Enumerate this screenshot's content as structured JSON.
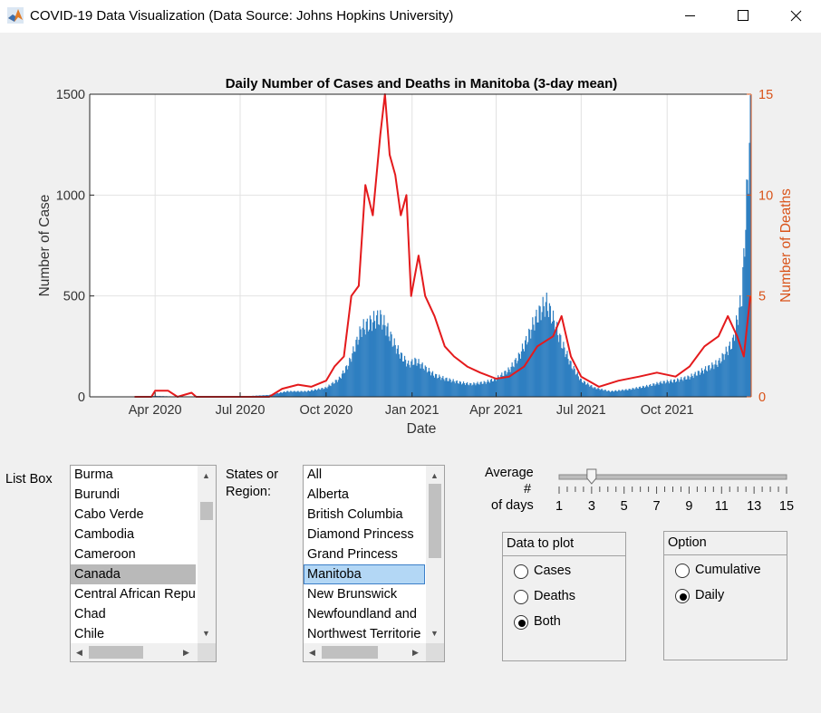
{
  "window": {
    "title": "COVID-19 Data Visualization (Data Source: Johns Hopkins University)",
    "icon": "matlab-icon",
    "controls": [
      "minimize-icon",
      "maximize-icon",
      "close-icon"
    ]
  },
  "chart_data": {
    "type": "bar+line",
    "title": "Daily Number of Cases and Deaths in Manitoba (3-day mean)",
    "xlabel": "Date",
    "ylabel_left": "Number of Case",
    "ylabel_right": "Number of Deaths",
    "x_ticks": [
      "Apr 2020",
      "Jul 2020",
      "Oct 2020",
      "Jan 2021",
      "Apr 2021",
      "Jul 2021",
      "Oct 2021"
    ],
    "y_left_ticks": [
      "0",
      "500",
      "1000",
      "1500"
    ],
    "y_right_ticks": [
      "0",
      "5",
      "10",
      "15"
    ],
    "ylim_left": [
      0,
      1500
    ],
    "ylim_right": [
      0,
      15
    ],
    "grid": true,
    "colors": {
      "cases": "#2f7fc1",
      "deaths": "#e41a1c",
      "right_axis": "#d95319"
    },
    "series": [
      {
        "type": "bar",
        "axis": "left",
        "points": [
          [
            "2020-03-15",
            2
          ],
          [
            "2020-04-01",
            5
          ],
          [
            "2020-04-15",
            3
          ],
          [
            "2020-05-01",
            1
          ],
          [
            "2020-06-01",
            1
          ],
          [
            "2020-07-01",
            2
          ],
          [
            "2020-08-01",
            10
          ],
          [
            "2020-08-20",
            30
          ],
          [
            "2020-09-10",
            30
          ],
          [
            "2020-10-01",
            50
          ],
          [
            "2020-10-15",
            100
          ],
          [
            "2020-10-25",
            180
          ],
          [
            "2020-11-01",
            280
          ],
          [
            "2020-11-08",
            380
          ],
          [
            "2020-11-15",
            400
          ],
          [
            "2020-11-22",
            430
          ],
          [
            "2020-11-28",
            440
          ],
          [
            "2020-12-05",
            380
          ],
          [
            "2020-12-12",
            300
          ],
          [
            "2020-12-20",
            230
          ],
          [
            "2020-12-28",
            180
          ],
          [
            "2021-01-05",
            200
          ],
          [
            "2021-01-15",
            160
          ],
          [
            "2021-01-25",
            120
          ],
          [
            "2021-02-05",
            100
          ],
          [
            "2021-02-20",
            80
          ],
          [
            "2021-03-05",
            70
          ],
          [
            "2021-03-20",
            80
          ],
          [
            "2021-04-01",
            100
          ],
          [
            "2021-04-15",
            150
          ],
          [
            "2021-04-25",
            220
          ],
          [
            "2021-05-05",
            330
          ],
          [
            "2021-05-12",
            420
          ],
          [
            "2021-05-20",
            490
          ],
          [
            "2021-05-25",
            520
          ],
          [
            "2021-06-01",
            430
          ],
          [
            "2021-06-10",
            300
          ],
          [
            "2021-06-20",
            180
          ],
          [
            "2021-07-01",
            90
          ],
          [
            "2021-07-15",
            50
          ],
          [
            "2021-08-01",
            30
          ],
          [
            "2021-08-20",
            40
          ],
          [
            "2021-09-10",
            60
          ],
          [
            "2021-09-25",
            80
          ],
          [
            "2021-10-10",
            90
          ],
          [
            "2021-10-25",
            110
          ],
          [
            "2021-11-10",
            150
          ],
          [
            "2021-11-25",
            190
          ],
          [
            "2021-12-10",
            300
          ],
          [
            "2021-12-20",
            560
          ],
          [
            "2021-12-29",
            1500
          ]
        ]
      },
      {
        "type": "line",
        "axis": "right",
        "points": [
          [
            "2020-03-10",
            0
          ],
          [
            "2020-03-28",
            0
          ],
          [
            "2020-04-01",
            0.3
          ],
          [
            "2020-04-15",
            0.3
          ],
          [
            "2020-04-25",
            0
          ],
          [
            "2020-05-10",
            0.2
          ],
          [
            "2020-05-15",
            0
          ],
          [
            "2020-08-01",
            0
          ],
          [
            "2020-08-15",
            0.4
          ],
          [
            "2020-09-01",
            0.6
          ],
          [
            "2020-09-15",
            0.5
          ],
          [
            "2020-10-01",
            0.8
          ],
          [
            "2020-10-10",
            1.5
          ],
          [
            "2020-10-20",
            2.0
          ],
          [
            "2020-10-28",
            5.0
          ],
          [
            "2020-11-05",
            5.5
          ],
          [
            "2020-11-12",
            10.5
          ],
          [
            "2020-11-20",
            9.0
          ],
          [
            "2020-11-28",
            13.0
          ],
          [
            "2020-12-03",
            15.0
          ],
          [
            "2020-12-08",
            12.0
          ],
          [
            "2020-12-14",
            11.0
          ],
          [
            "2020-12-20",
            9.0
          ],
          [
            "2020-12-26",
            10.0
          ],
          [
            "2020-12-31",
            5.0
          ],
          [
            "2021-01-08",
            7.0
          ],
          [
            "2021-01-15",
            5.0
          ],
          [
            "2021-01-25",
            4.0
          ],
          [
            "2021-02-05",
            2.5
          ],
          [
            "2021-02-15",
            2.0
          ],
          [
            "2021-03-01",
            1.5
          ],
          [
            "2021-03-15",
            1.2
          ],
          [
            "2021-04-01",
            0.9
          ],
          [
            "2021-04-15",
            1.0
          ],
          [
            "2021-05-01",
            1.5
          ],
          [
            "2021-05-15",
            2.5
          ],
          [
            "2021-06-01",
            3.0
          ],
          [
            "2021-06-10",
            4.0
          ],
          [
            "2021-06-20",
            2.0
          ],
          [
            "2021-07-01",
            1.0
          ],
          [
            "2021-07-20",
            0.5
          ],
          [
            "2021-08-10",
            0.8
          ],
          [
            "2021-09-01",
            1.0
          ],
          [
            "2021-09-20",
            1.2
          ],
          [
            "2021-10-10",
            1.0
          ],
          [
            "2021-10-25",
            1.5
          ],
          [
            "2021-11-10",
            2.5
          ],
          [
            "2021-11-25",
            3.0
          ],
          [
            "2021-12-05",
            4.0
          ],
          [
            "2021-12-15",
            3.0
          ],
          [
            "2021-12-22",
            2.0
          ],
          [
            "2021-12-29",
            5.0
          ]
        ]
      }
    ]
  },
  "controls": {
    "country_list": {
      "label": "List Box",
      "items": [
        "Burma",
        "Burundi",
        "Cabo Verde",
        "Cambodia",
        "Cameroon",
        "Canada",
        "Central African Repu",
        "Chad",
        "Chile"
      ],
      "selected": "Canada"
    },
    "state_list": {
      "label_line1": "States or",
      "label_line2": "Region:",
      "items": [
        "All",
        "Alberta",
        "British Columbia",
        "Diamond Princess",
        "Grand Princess",
        "Manitoba",
        "New Brunswick",
        "Newfoundland and",
        "Northwest Territorie"
      ],
      "selected": "Manitoba"
    },
    "average_slider": {
      "label_line1": "Average",
      "label_line2": "#",
      "label_line3": "of days",
      "ticks": [
        "1",
        "3",
        "5",
        "7",
        "9",
        "11",
        "13",
        "15"
      ],
      "value": 3,
      "min": 1,
      "max": 15
    },
    "data_to_plot": {
      "title": "Data to plot",
      "options": [
        "Cases",
        "Deaths",
        "Both"
      ],
      "selected": "Both"
    },
    "option": {
      "title": "Option",
      "options": [
        "Cumulative",
        "Daily"
      ],
      "selected": "Daily"
    }
  }
}
